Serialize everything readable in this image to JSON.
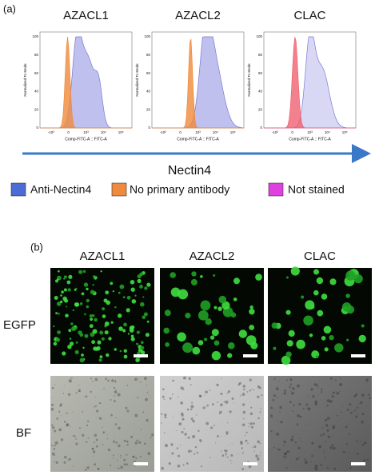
{
  "panel_a": {
    "label": "(a)",
    "columns": [
      "AZACL1",
      "AZACL2",
      "CLAC"
    ],
    "y_axis_label": "Normalized To Mode",
    "x_axis_label": "Comp-FITC-A :: FITC-A",
    "yticks": [
      "0",
      "20",
      "40",
      "60",
      "80",
      "100"
    ],
    "xticks": [
      "-10³",
      "0",
      "10³",
      "10⁴",
      "10⁵"
    ],
    "arrow_label": "Nectin4",
    "legend": [
      {
        "name": "Anti-Nectin4",
        "color": "#4a6cd4"
      },
      {
        "name": "No primary antibody",
        "color": "#f08a3c"
      },
      {
        "name": "Not stained",
        "color": "#e040e0"
      }
    ]
  },
  "panel_b": {
    "label": "(b)",
    "columns": [
      "AZACL1",
      "AZACL2",
      "CLAC"
    ],
    "rows": [
      "EGFP",
      "BF"
    ]
  }
}
